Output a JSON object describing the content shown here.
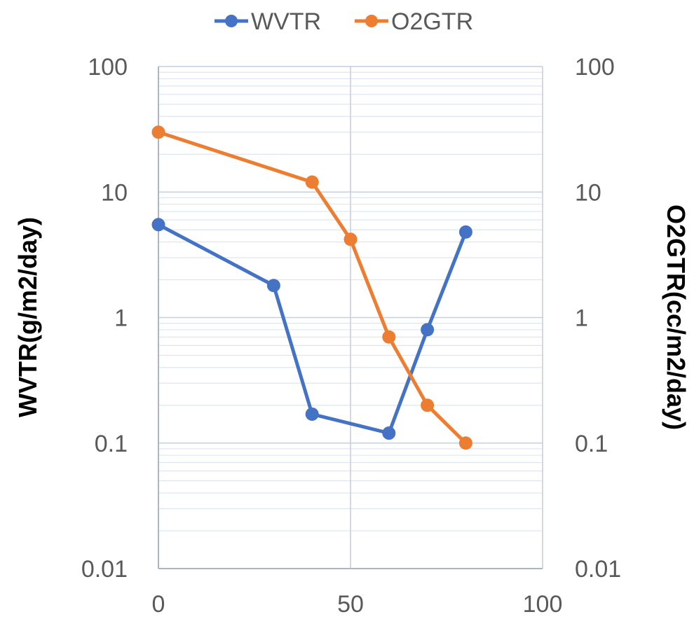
{
  "chart_data": {
    "type": "line",
    "title": "",
    "xlabel": "",
    "ylabel": "WVTR(g/m2/day)",
    "y2label": "O2GTR(cc/m2/day)",
    "xlim": [
      0,
      100
    ],
    "ylim": [
      0.01,
      100
    ],
    "y2lim": [
      0.01,
      100
    ],
    "yscale": "log",
    "grid": true,
    "legend": "top",
    "x_ticks": [
      "0",
      "50",
      "100"
    ],
    "y_ticks": [
      "100",
      "10",
      "1",
      "0.1",
      "0.01"
    ],
    "y2_ticks": [
      "100",
      "10",
      "1",
      "0.1",
      "0.01"
    ],
    "series": [
      {
        "name": "WVTR",
        "color": "#4472C4",
        "axis": "left",
        "x": [
          0,
          30,
          40,
          60,
          70,
          80
        ],
        "y": [
          5.5,
          1.8,
          0.17,
          0.12,
          0.8,
          4.8
        ]
      },
      {
        "name": "O2GTR",
        "color": "#ED7D31",
        "axis": "right",
        "x": [
          0,
          40,
          50,
          60,
          70,
          80
        ],
        "y": [
          30,
          12,
          4.2,
          0.7,
          0.2,
          0.1
        ]
      }
    ]
  }
}
